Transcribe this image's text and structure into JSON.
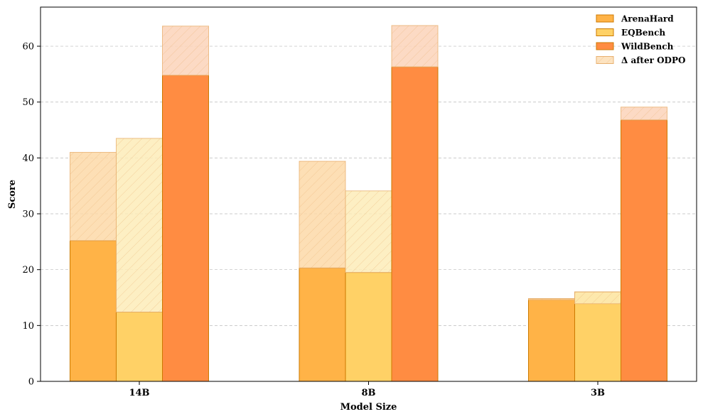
{
  "chart_data": {
    "type": "bar",
    "xlabel": "Model Size",
    "ylabel": "Score",
    "categories": [
      "14B",
      "8B",
      "3B"
    ],
    "ylim": [
      0,
      67
    ],
    "yticks": [
      0,
      10,
      20,
      30,
      40,
      50,
      60
    ],
    "grid": "horizontal-dashed",
    "legend_position": "top-right",
    "series": [
      {
        "name": "ArenaHard",
        "base": [
          25.2,
          20.3,
          14.8
        ],
        "after_odpo": [
          41.0,
          39.4,
          14.6
        ],
        "color": "#FFB347",
        "delta_color": "#FDD9A8"
      },
      {
        "name": "EQBench",
        "base": [
          12.4,
          19.5,
          16.0
        ],
        "after_odpo": [
          43.5,
          34.1,
          13.9
        ],
        "color": "#FFD166",
        "delta_color": "#FDECB8"
      },
      {
        "name": "WildBench",
        "base": [
          54.8,
          56.3,
          46.8
        ],
        "after_odpo": [
          63.6,
          63.7,
          49.1
        ],
        "color": "#FF8C42",
        "delta_color": "#FCD3BA"
      }
    ],
    "delta_legend_label": "Δ after ODPO",
    "edge_color": "#CC7A00"
  }
}
